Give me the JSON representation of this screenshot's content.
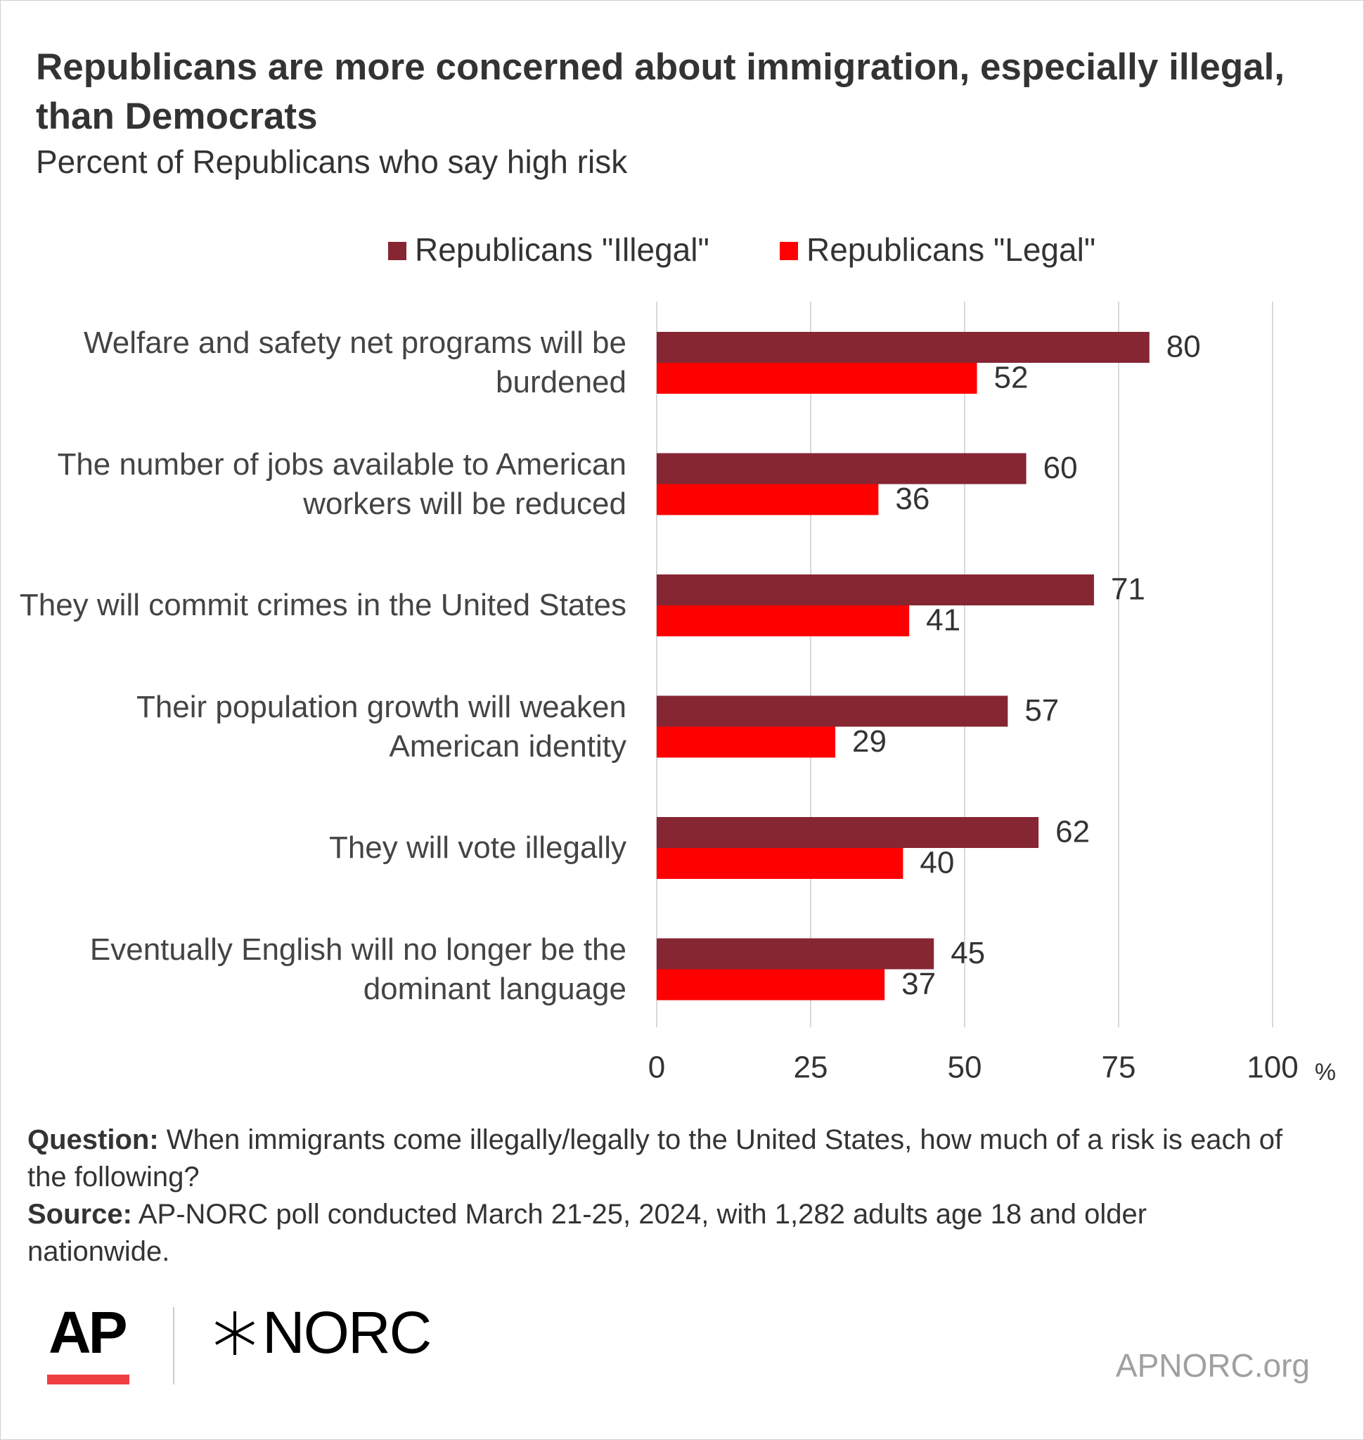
{
  "chart_data": {
    "type": "bar",
    "orientation": "horizontal",
    "title": "Republicans are more concerned about immigration, especially illegal, than Democrats",
    "subtitle": "Percent of Republicans who say high risk",
    "categories": [
      "Welfare and safety net programs will be burdened",
      "The number of jobs available to American workers will be reduced",
      "They will commit crimes in the United States",
      "Their population growth will weaken American identity",
      "They will vote illegally",
      "Eventually English will no longer be the dominant language"
    ],
    "series": [
      {
        "name": "Republicans \"Illegal\"",
        "color": "#862633",
        "values": [
          80,
          60,
          71,
          57,
          62,
          45
        ]
      },
      {
        "name": "Republicans \"Legal\"",
        "color": "#ff0000",
        "values": [
          52,
          36,
          41,
          29,
          40,
          37
        ]
      }
    ],
    "xlim": [
      0,
      100
    ],
    "xticks": [
      0,
      25,
      50,
      75,
      100
    ],
    "x_unit": "%",
    "grid": true,
    "legend": "top"
  },
  "footer": {
    "question_label": "Question:",
    "question": "When immigrants come illegally/legally to the United States, how much of a risk is each of the following?",
    "source_label": "Source:",
    "source": "AP-NORC poll conducted March 21-25, 2024, with 1,282 adults age 18 and older nationwide.",
    "logo_ap": "AP",
    "logo_norc": "NORC",
    "website": "APNORC.org"
  }
}
